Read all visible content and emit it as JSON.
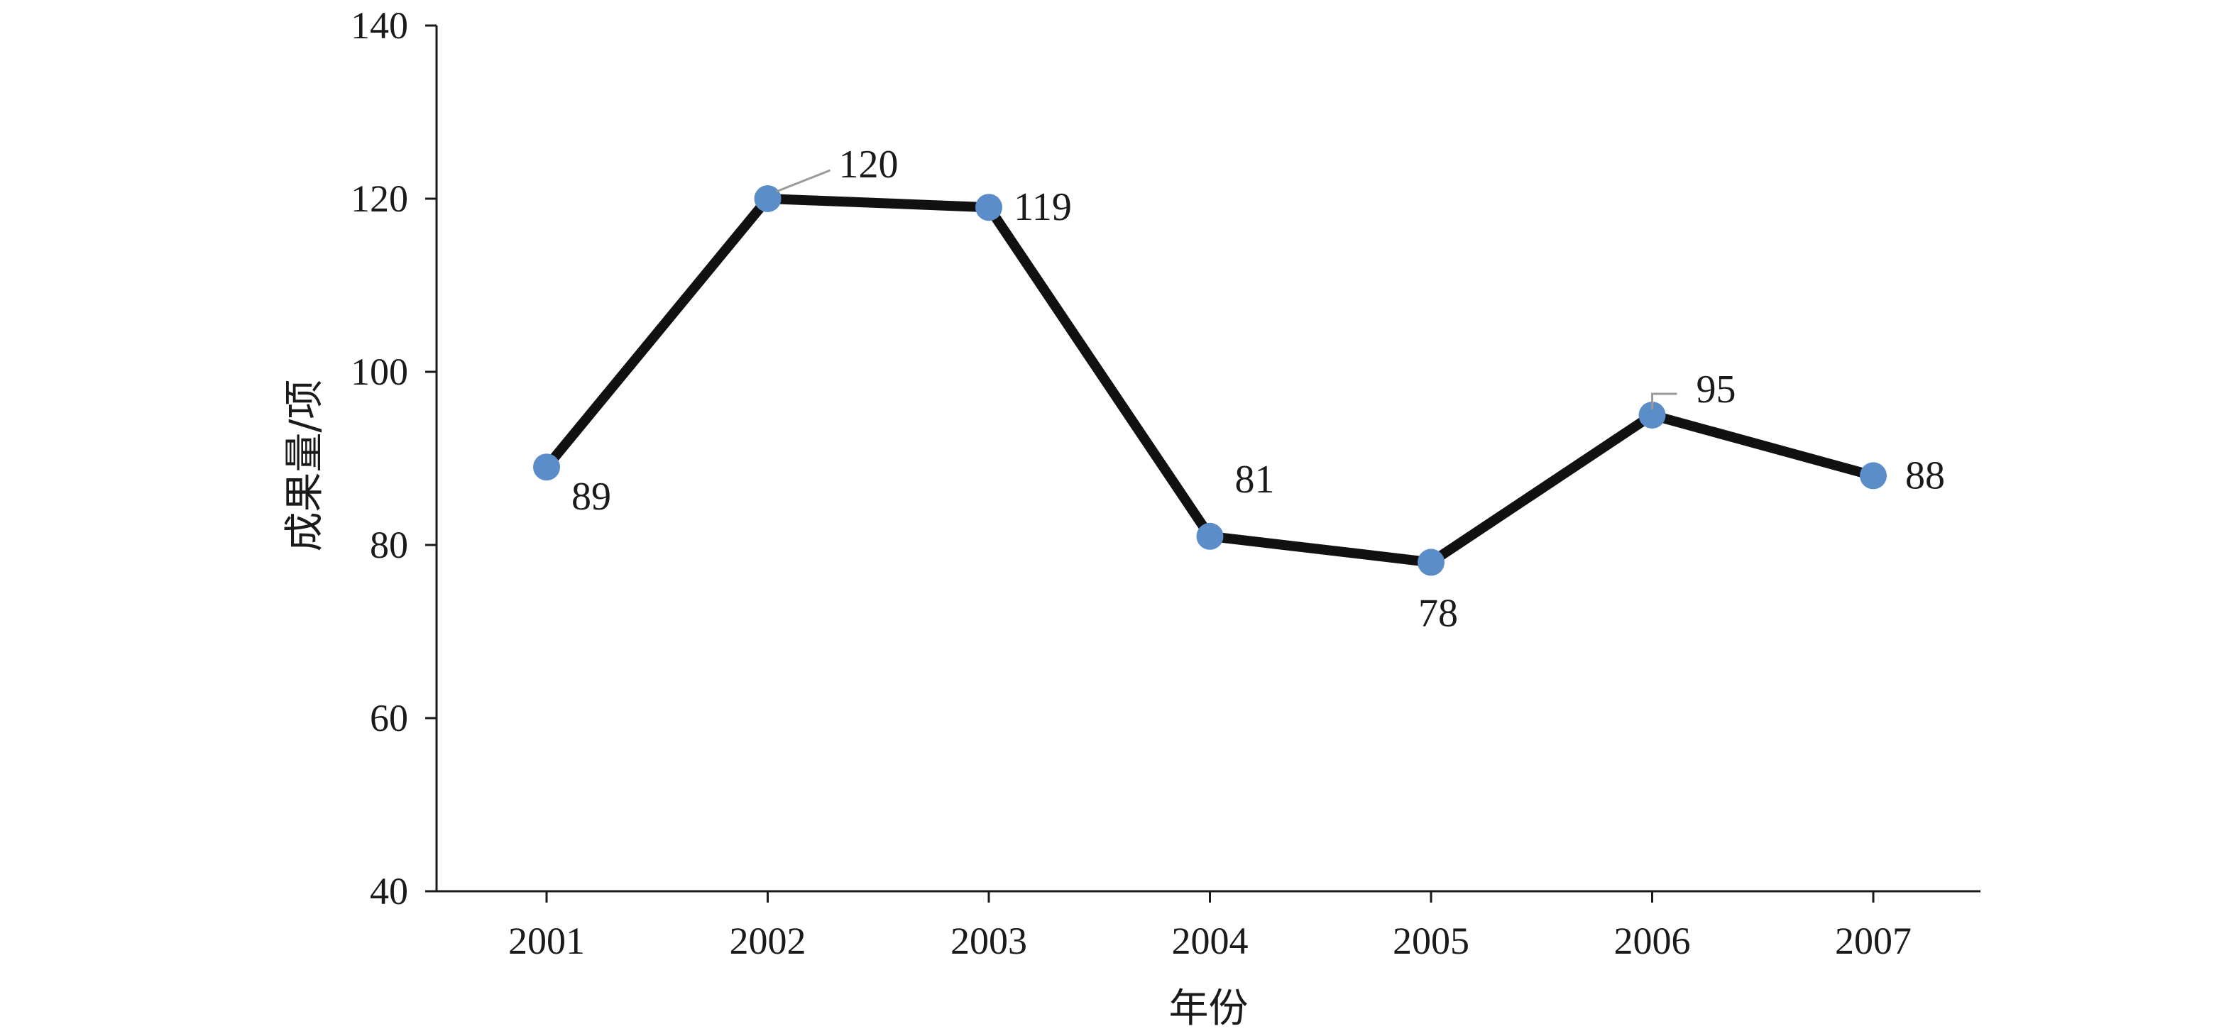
{
  "chart_data": {
    "type": "line",
    "categories": [
      "2001",
      "2002",
      "2003",
      "2004",
      "2005",
      "2006",
      "2007"
    ],
    "series": [
      {
        "values": [
          89,
          120,
          119,
          81,
          78,
          95,
          88
        ]
      }
    ],
    "data_labels": [
      "89",
      "120",
      "119",
      "81",
      "78",
      "95",
      "88"
    ],
    "title": "",
    "xlabel": "年份",
    "ylabel": "成果量/项",
    "ylim": [
      40,
      140
    ],
    "yticks": [
      40,
      60,
      80,
      100,
      120,
      140
    ],
    "ytick_labels": [
      "40",
      "60",
      "80",
      "100",
      "120",
      "140"
    ],
    "grid": false,
    "legend": "none",
    "colors": {
      "line": "#111111",
      "marker": "#5b8ec9",
      "axis": "#1a1a1a",
      "leader": "#9a9a9a"
    }
  }
}
